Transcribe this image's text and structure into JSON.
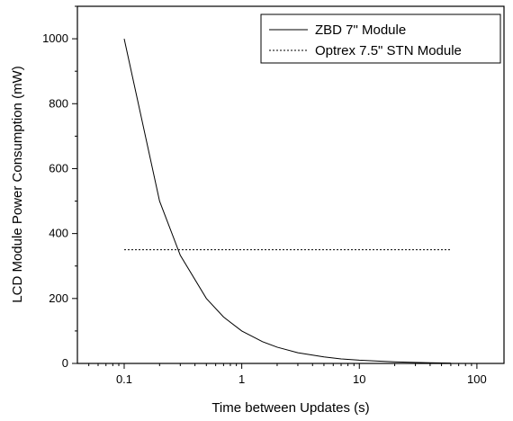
{
  "chart_data": {
    "type": "line",
    "xlabel": "Time between Updates (s)",
    "ylabel": "LCD Module Power Consumption (mW)",
    "x_scale": "log",
    "xlim": [
      0.04,
      170
    ],
    "ylim": [
      0,
      1100
    ],
    "x_ticks": [
      {
        "value": 0.1,
        "label": "0.1"
      },
      {
        "value": 1,
        "label": "1"
      },
      {
        "value": 10,
        "label": "10"
      },
      {
        "value": 100,
        "label": "100"
      }
    ],
    "y_ticks": [
      {
        "value": 0,
        "label": "0"
      },
      {
        "value": 200,
        "label": "200"
      },
      {
        "value": 400,
        "label": "400"
      },
      {
        "value": 600,
        "label": "600"
      },
      {
        "value": 800,
        "label": "800"
      },
      {
        "value": 1000,
        "label": "1000"
      }
    ],
    "grid": false,
    "legend_position": "top-right",
    "series": [
      {
        "name": "ZBD 7\" Module",
        "style": "solid",
        "color": "#000000",
        "x": [
          0.1,
          0.2,
          0.3,
          0.5,
          0.7,
          1,
          1.5,
          2,
          3,
          5,
          7,
          10,
          15,
          20,
          30,
          40,
          60
        ],
        "y": [
          1000,
          500,
          333,
          200,
          143,
          100,
          67,
          50,
          33,
          20,
          14,
          10,
          7,
          5,
          3,
          2,
          1
        ]
      },
      {
        "name": "Optrex 7.5\" STN Module",
        "style": "dashed",
        "color": "#000000",
        "x": [
          0.1,
          60
        ],
        "y": [
          350,
          350
        ]
      }
    ]
  }
}
